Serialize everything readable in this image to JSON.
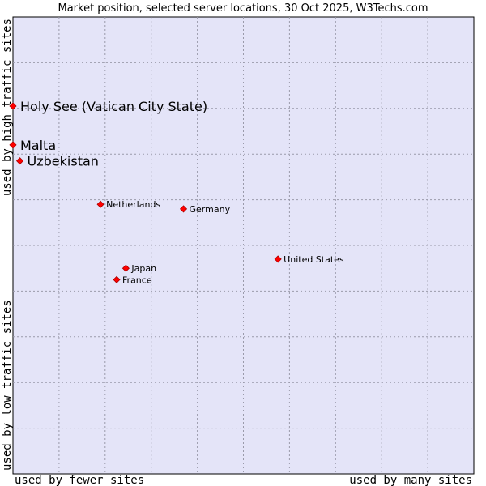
{
  "chart_data": {
    "type": "scatter",
    "title": "Market position, selected server locations, 30 Oct 2025, W3Techs.com",
    "xlabel_low": "used by fewer sites",
    "xlabel_high": "used by many sites",
    "ylabel_low": "used by low traffic sites",
    "ylabel_high": "used by high traffic sites",
    "xlim": [
      0,
      10
    ],
    "ylim": [
      0,
      10
    ],
    "grid": true,
    "point_color": "#ff0000",
    "plot_background": "#e4e4f8",
    "points": [
      {
        "name": "Holy See (Vatican City State)",
        "x": 0.0,
        "y": 8.05,
        "label_size": "large"
      },
      {
        "name": "Malta",
        "x": 0.0,
        "y": 7.2,
        "label_size": "large"
      },
      {
        "name": "Uzbekistan",
        "x": 0.15,
        "y": 6.85,
        "label_size": "large"
      },
      {
        "name": "Netherlands",
        "x": 1.9,
        "y": 5.9,
        "label_size": "small"
      },
      {
        "name": "Germany",
        "x": 3.7,
        "y": 5.8,
        "label_size": "small"
      },
      {
        "name": "United States",
        "x": 5.75,
        "y": 4.7,
        "label_size": "small"
      },
      {
        "name": "Japan",
        "x": 2.45,
        "y": 4.5,
        "label_size": "small"
      },
      {
        "name": "France",
        "x": 2.25,
        "y": 4.25,
        "label_size": "small"
      }
    ]
  }
}
